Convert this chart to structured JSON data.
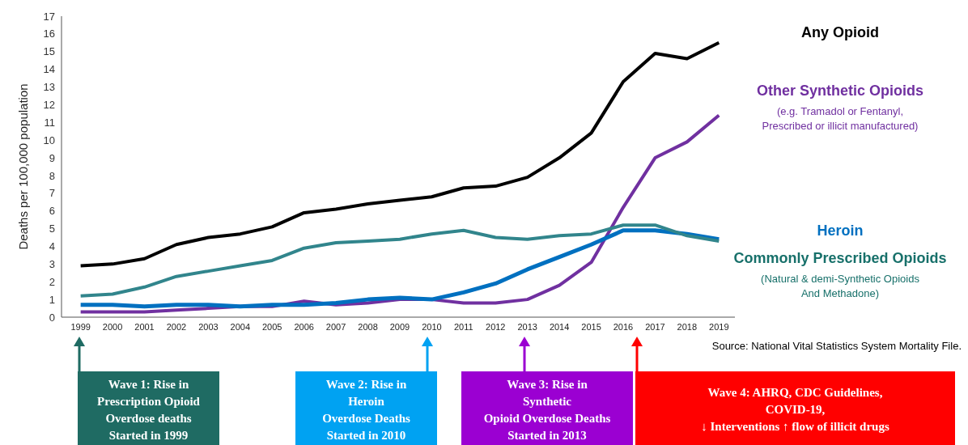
{
  "chart_data": {
    "type": "line",
    "ylabel": "Deaths per 100,000 population",
    "categories": [
      "1999",
      "2000",
      "2001",
      "2002",
      "2003",
      "2004",
      "2005",
      "2006",
      "2007",
      "2008",
      "2009",
      "2010",
      "2011",
      "2012",
      "2013",
      "2014",
      "2015",
      "2016",
      "2017",
      "2018",
      "2019"
    ],
    "ylim": [
      0,
      17
    ],
    "yticks": [
      0,
      1,
      2,
      3,
      4,
      5,
      6,
      7,
      8,
      9,
      10,
      11,
      12,
      13,
      14,
      15,
      16,
      17
    ],
    "grid": false,
    "legend": false,
    "marker": "none",
    "line_style": "solid",
    "series": [
      {
        "name": "Any Opioid",
        "color": "#000000",
        "values": [
          2.9,
          3.0,
          3.3,
          4.1,
          4.5,
          4.7,
          5.1,
          5.9,
          6.1,
          6.4,
          6.6,
          6.8,
          7.3,
          7.4,
          7.9,
          9.0,
          10.4,
          13.3,
          14.9,
          14.6,
          15.5
        ]
      },
      {
        "name": "Other Synthetic Opioids",
        "color": "#7030a0",
        "values": [
          0.3,
          0.3,
          0.3,
          0.4,
          0.5,
          0.6,
          0.6,
          0.9,
          0.7,
          0.8,
          1.0,
          1.0,
          0.8,
          0.8,
          1.0,
          1.8,
          3.1,
          6.2,
          9.0,
          9.9,
          11.4
        ]
      },
      {
        "name": "Heroin",
        "color": "#0070c0",
        "values": [
          0.7,
          0.7,
          0.6,
          0.7,
          0.7,
          0.6,
          0.7,
          0.7,
          0.8,
          1.0,
          1.1,
          1.0,
          1.4,
          1.9,
          2.7,
          3.4,
          4.1,
          4.9,
          4.9,
          4.7,
          4.4
        ]
      },
      {
        "name": "Commonly Prescribed Opioids",
        "color": "#31858c",
        "values": [
          1.2,
          1.3,
          1.7,
          2.3,
          2.6,
          2.9,
          3.2,
          3.9,
          4.2,
          4.3,
          4.4,
          4.7,
          4.9,
          4.5,
          4.4,
          4.6,
          4.7,
          5.2,
          5.2,
          4.6,
          4.3
        ]
      }
    ],
    "annotations": [
      "(e.g. Tramadol or Fentanyl,\nPrescribed or illicit manufactured)",
      "(Natural & demi-Synthetic Opioids\nAnd Methadone)",
      "Source: National Vital Statistics System Mortality File.",
      "Wave 1: Rise in\nPrescription Opioid\nOverdose deaths\nStarted in 1999",
      "Wave 2: Rise in\nHeroin\nOverdose Deaths\nStarted in 2010",
      "Wave 3: Rise in\nSynthetic\nOpioid Overdose Deaths\nStarted in 2013",
      "Wave 4: AHRQ, CDC Guidelines,\nCOVID-19,\n↓  Interventions ↑ flow of illicit drugs"
    ]
  }
}
